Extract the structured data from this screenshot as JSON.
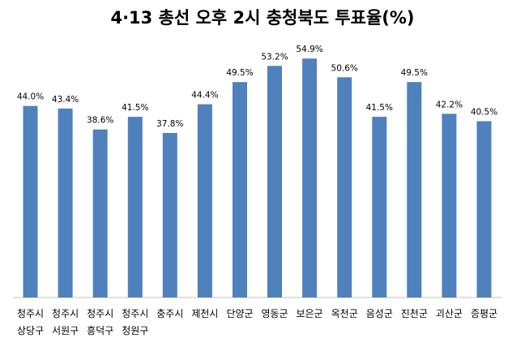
{
  "chart_data": {
    "type": "bar",
    "title": "4·13 총선 오후 2시 충청북도 투표율(%)",
    "xlabel": "",
    "ylabel": "",
    "ylim": [
      0,
      60
    ],
    "grid": false,
    "legend": "none",
    "bar_color": "#4F81BD",
    "categories": [
      [
        "청주시",
        "상당구"
      ],
      [
        "청주시",
        "서원구"
      ],
      [
        "청주시",
        "흥덕구"
      ],
      [
        "청주시",
        "청원구"
      ],
      [
        "충주시"
      ],
      [
        "제천시"
      ],
      [
        "단양군"
      ],
      [
        "영동군"
      ],
      [
        "보은군"
      ],
      [
        "옥천군"
      ],
      [
        "음성군"
      ],
      [
        "진천군"
      ],
      [
        "괴산군"
      ],
      [
        "증평군"
      ]
    ],
    "values": [
      44.0,
      43.4,
      38.6,
      41.5,
      37.8,
      44.4,
      49.5,
      53.2,
      54.9,
      50.6,
      41.5,
      49.5,
      42.2,
      40.5
    ],
    "value_labels": [
      "44.0%",
      "43.4%",
      "38.6%",
      "41.5%",
      "37.8%",
      "44.4%",
      "49.5%",
      "53.2%",
      "54.9%",
      "50.6%",
      "41.5%",
      "49.5%",
      "42.2%",
      "40.5%"
    ]
  }
}
